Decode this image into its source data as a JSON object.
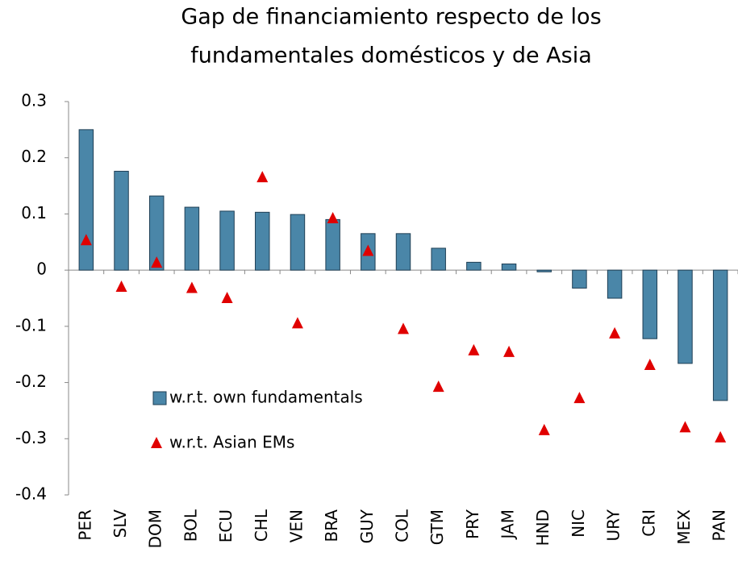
{
  "chart_data": {
    "type": "bar_marker",
    "title": [
      "Gap de financiamiento respecto de los",
      "fundamentales domésticos y de Asia"
    ],
    "categories": [
      "PER",
      "SLV",
      "DOM",
      "BOL",
      "ECU",
      "CHL",
      "VEN",
      "BRA",
      "GUY",
      "COL",
      "GTM",
      "PRY",
      "JAM",
      "HND",
      "NIC",
      "URY",
      "CRI",
      "MEX",
      "PAN"
    ],
    "series": [
      {
        "name": "w.r.t. own fundamentals",
        "color": "#4a86a8",
        "mark": "bar",
        "values": [
          0.25,
          0.176,
          0.132,
          0.112,
          0.105,
          0.103,
          0.099,
          0.09,
          0.065,
          0.065,
          0.039,
          0.014,
          0.011,
          -0.003,
          -0.032,
          -0.05,
          -0.122,
          -0.166,
          -0.232
        ]
      },
      {
        "name": "w.r.t. Asian EMs",
        "color": "#e00000",
        "mark": "triangle",
        "values": [
          0.053,
          -0.03,
          0.013,
          -0.032,
          -0.05,
          0.165,
          -0.095,
          0.092,
          0.034,
          -0.105,
          -0.208,
          -0.143,
          -0.146,
          -0.285,
          -0.228,
          -0.113,
          -0.169,
          -0.28,
          -0.298
        ]
      }
    ],
    "ylim": [
      -0.4,
      0.3
    ],
    "yticks": [
      -0.4,
      -0.3,
      -0.2,
      -0.1,
      0,
      0.1,
      0.2,
      0.3
    ]
  }
}
